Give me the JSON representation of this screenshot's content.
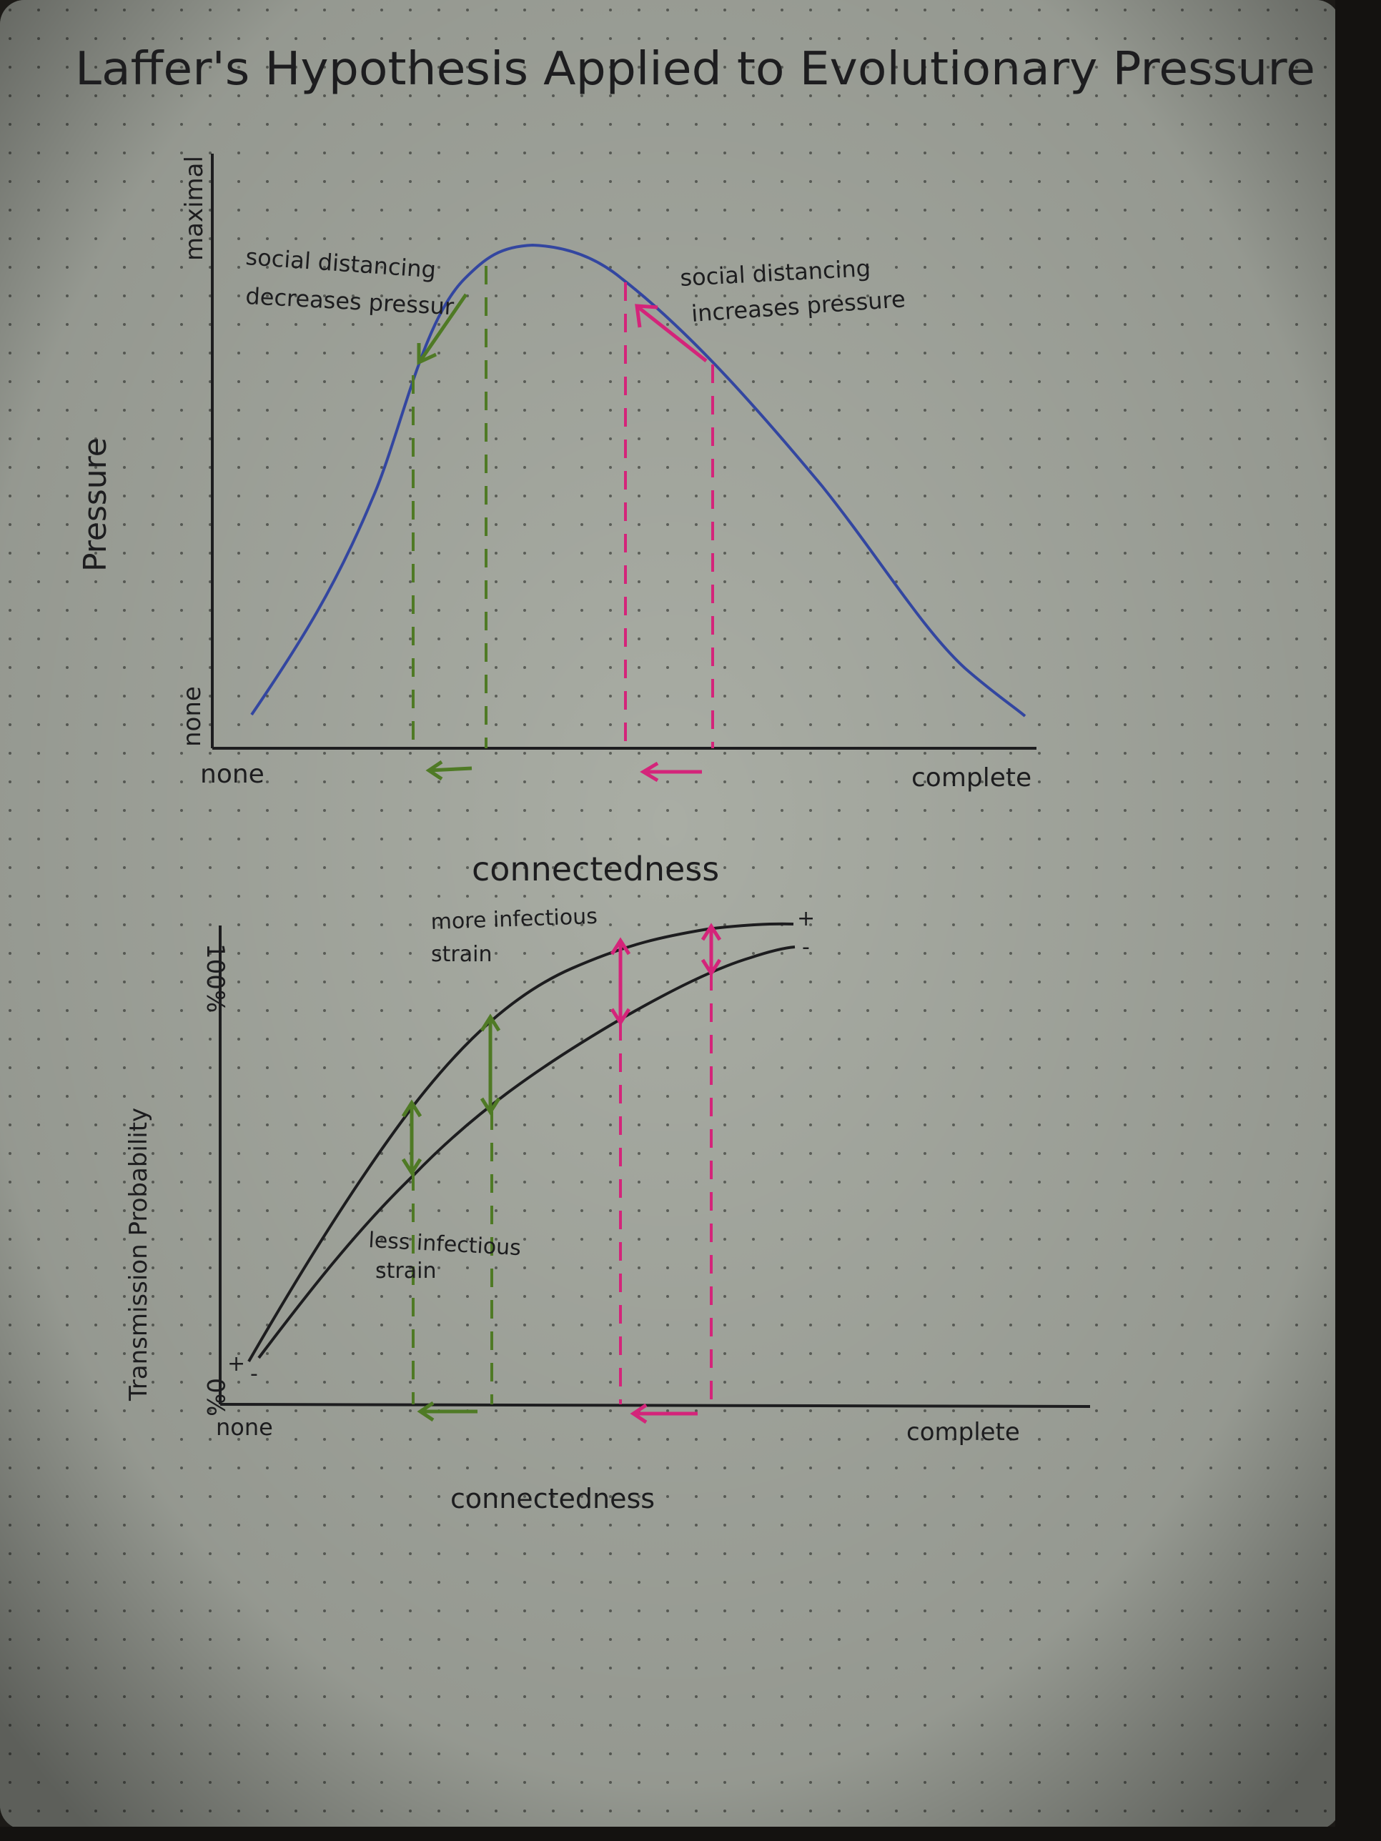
{
  "page": {
    "title": "Laffer's Hypothesis Applied to Evolutionary Pressure",
    "colors": {
      "paper": "#a9ada4",
      "ink": "#1d1d1f",
      "curve_blue": "#3346a0",
      "green": "#4f7a25",
      "magenta": "#d4247a",
      "dot": "#5e615b"
    }
  },
  "chart_top": {
    "y_label": "Pressure",
    "y_tick_top": "maximal",
    "y_tick_bottom": "none",
    "x_tick_left": "none",
    "x_tick_right": "complete",
    "x_label": "connectedness",
    "note_left_line1": "social distancing",
    "note_left_line2": "decreases pressur",
    "note_right_line1": "social distancing",
    "note_right_line2": "increases pressure"
  },
  "chart_bottom": {
    "y_label": "Transmission Probability",
    "y_tick_top": "100%",
    "y_tick_bottom": "0%",
    "x_tick_left": "none",
    "x_tick_right": "complete",
    "x_label": "connectedness",
    "note_upper_line1": "more infectious",
    "note_upper_line2": "strain",
    "note_lower_line1": "less infectious",
    "note_lower_line2": "strain",
    "plus_mark": "+",
    "minus_mark": "-"
  }
}
